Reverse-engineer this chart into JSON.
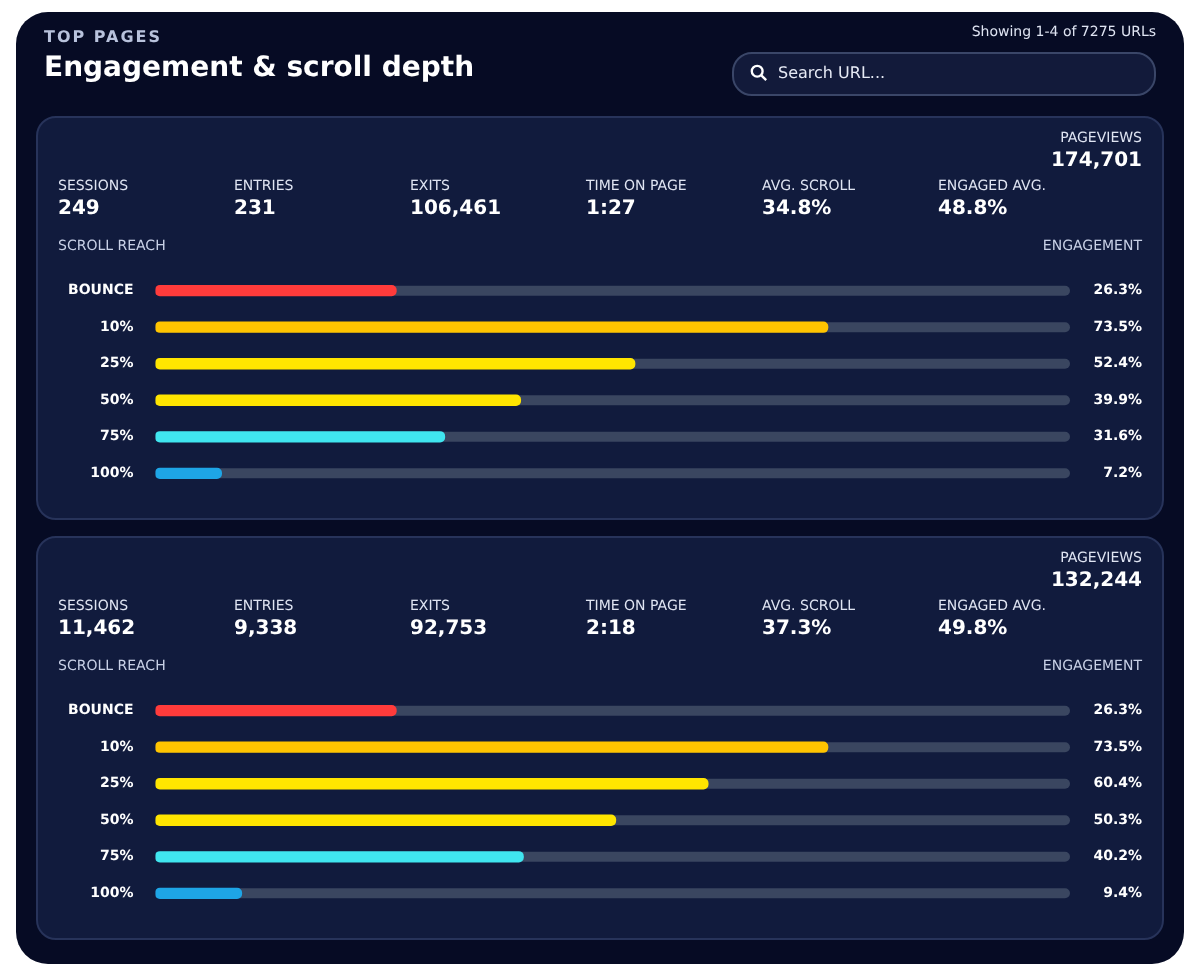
{
  "chart_data": [
    {
      "type": "bar",
      "orientation": "horizontal",
      "subtitle": "TOP PAGES",
      "title": "Engagement & scroll depth",
      "annotations": [
        "Showing 1-4 of 7275 URLs",
        "Search URL...",
        "PAGEVIEWS",
        "174,701",
        "SESSIONS",
        "249",
        "ENTRIES",
        "231",
        "EXITS",
        "106,461",
        "TIME ON PAGE",
        "1:27",
        "AVG. SCROLL",
        "34.8%",
        "ENGAGED AVG.",
        "48.8%"
      ],
      "ylabel": "SCROLL REACH",
      "xlabel": "ENGAGEMENT",
      "categories": [
        "BOUNCE",
        "10%",
        "25%",
        "50%",
        "75%",
        "100%"
      ],
      "values": [
        26.3,
        73.5,
        52.4,
        39.9,
        31.6,
        7.2
      ],
      "value_labels": [
        "26.3%",
        "73.5%",
        "52.4%",
        "39.9%",
        "31.6%",
        "7.2%"
      ],
      "colors": [
        "#ff3b3b",
        "#ffc400",
        "#ffe500",
        "#ffe500",
        "#40e6f0",
        "#1ea5e6"
      ],
      "xlim": [
        0,
        100
      ],
      "tick_labels": "y"
    },
    {
      "type": "bar",
      "orientation": "horizontal",
      "annotations": [
        "PAGEVIEWS",
        "132,244",
        "SESSIONS",
        "11,462",
        "ENTRIES",
        "9,338",
        "EXITS",
        "92,753",
        "TIME ON PAGE",
        "2:18",
        "AVG. SCROLL",
        "37.3%",
        "ENGAGED AVG.",
        "49.8%"
      ],
      "ylabel": "SCROLL REACH",
      "xlabel": "ENGAGEMENT",
      "categories": [
        "BOUNCE",
        "10%",
        "25%",
        "50%",
        "75%",
        "100%"
      ],
      "values": [
        26.3,
        73.5,
        60.4,
        50.3,
        40.2,
        9.4
      ],
      "value_labels": [
        "26.3%",
        "73.5%",
        "60.4%",
        "50.3%",
        "40.2%",
        "9.4%"
      ],
      "colors": [
        "#ff3b3b",
        "#ffc400",
        "#ffe500",
        "#ffe500",
        "#40e6f0",
        "#1ea5e6"
      ],
      "xlim": [
        0,
        100
      ],
      "tick_labels": "y"
    }
  ]
}
